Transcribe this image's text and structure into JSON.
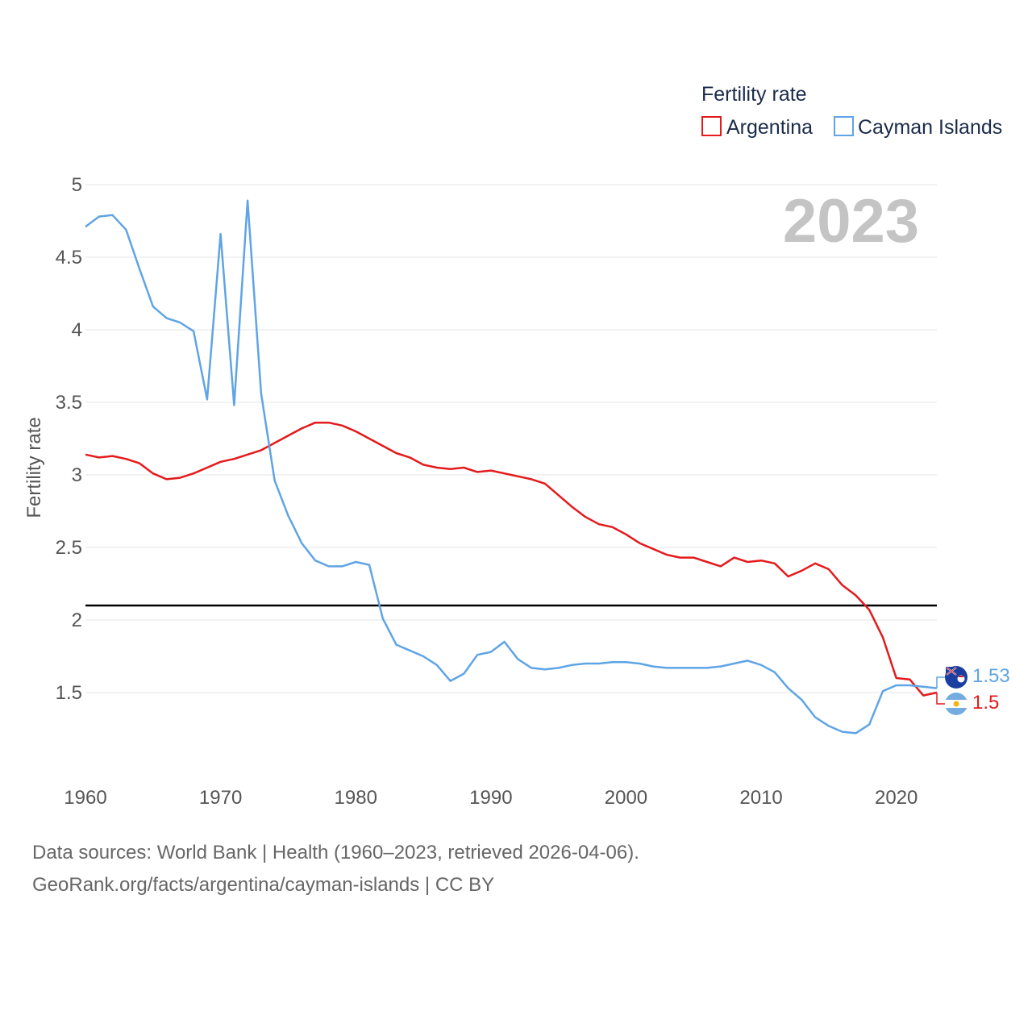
{
  "chart_data": {
    "type": "line",
    "ylabel": "Fertility rate",
    "legend_title": "Fertility rate",
    "year_label": "2023",
    "x_ticks": [
      "1960",
      "1970",
      "1980",
      "1990",
      "2000",
      "2010",
      "2020"
    ],
    "y_ticks": [
      "1.5",
      "2",
      "2.5",
      "3",
      "3.5",
      "4",
      "4.5",
      "5"
    ],
    "xlim": [
      1960,
      2023
    ],
    "ylim": [
      1.0,
      5.0
    ],
    "reference_line": 2.1,
    "colors": {
      "argentina": "#e41a1c",
      "cayman": "#5fa4e6",
      "reference": "#000000",
      "grid": "#e6e6e6"
    },
    "x": [
      1960,
      1961,
      1962,
      1963,
      1964,
      1965,
      1966,
      1967,
      1968,
      1969,
      1970,
      1971,
      1972,
      1973,
      1974,
      1975,
      1976,
      1977,
      1978,
      1979,
      1980,
      1981,
      1982,
      1983,
      1984,
      1985,
      1986,
      1987,
      1988,
      1989,
      1990,
      1991,
      1992,
      1993,
      1994,
      1995,
      1996,
      1997,
      1998,
      1999,
      2000,
      2001,
      2002,
      2003,
      2004,
      2005,
      2006,
      2007,
      2008,
      2009,
      2010,
      2011,
      2012,
      2013,
      2014,
      2015,
      2016,
      2017,
      2018,
      2019,
      2020,
      2021,
      2022,
      2023
    ],
    "series": [
      {
        "name": "Argentina",
        "end_label": "1.5",
        "values": [
          3.14,
          3.12,
          3.13,
          3.11,
          3.08,
          3.01,
          2.97,
          2.98,
          3.01,
          3.05,
          3.09,
          3.11,
          3.14,
          3.17,
          3.22,
          3.27,
          3.32,
          3.36,
          3.36,
          3.34,
          3.3,
          3.25,
          3.2,
          3.15,
          3.12,
          3.07,
          3.05,
          3.04,
          3.05,
          3.02,
          3.03,
          3.01,
          2.99,
          2.97,
          2.94,
          2.86,
          2.78,
          2.71,
          2.66,
          2.64,
          2.59,
          2.53,
          2.49,
          2.45,
          2.43,
          2.43,
          2.4,
          2.37,
          2.43,
          2.4,
          2.41,
          2.39,
          2.3,
          2.34,
          2.39,
          2.35,
          2.24,
          2.17,
          2.07,
          1.88,
          1.6,
          1.59,
          1.48,
          1.5
        ]
      },
      {
        "name": "Cayman Islands",
        "end_label": "1.53",
        "values": [
          4.71,
          4.78,
          4.79,
          4.69,
          4.42,
          4.16,
          4.08,
          4.05,
          3.99,
          3.52,
          4.66,
          3.48,
          4.89,
          3.56,
          2.96,
          2.72,
          2.53,
          2.41,
          2.37,
          2.37,
          2.4,
          2.38,
          2.01,
          1.83,
          1.79,
          1.75,
          1.69,
          1.58,
          1.63,
          1.76,
          1.78,
          1.85,
          1.73,
          1.67,
          1.66,
          1.67,
          1.69,
          1.7,
          1.7,
          1.71,
          1.71,
          1.7,
          1.68,
          1.67,
          1.67,
          1.67,
          1.67,
          1.68,
          1.7,
          1.72,
          1.69,
          1.64,
          1.53,
          1.45,
          1.33,
          1.27,
          1.23,
          1.22,
          1.28,
          1.51,
          1.55,
          1.55,
          1.54,
          1.53
        ]
      }
    ]
  },
  "footer": {
    "line1": "Data sources: World Bank | Health (1960–2023, retrieved 2026-04-06).",
    "line2": "GeoRank.org/facts/argentina/cayman-islands | CC BY"
  }
}
